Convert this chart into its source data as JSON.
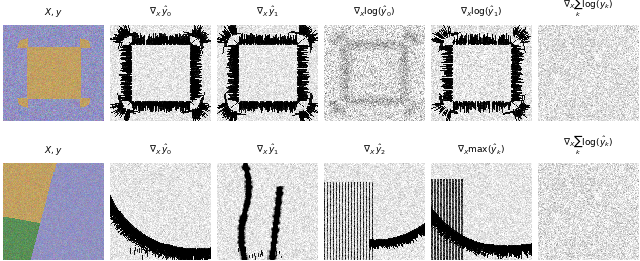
{
  "figsize": [
    6.4,
    2.61
  ],
  "dpi": 100,
  "nrows": 2,
  "ncols": 6,
  "row1_titles": [
    "$X, y$",
    "$\\nabla_X\\, \\hat{y}_0$",
    "$\\nabla_X\\, \\hat{y}_1$",
    "$\\nabla_X \\log(\\hat{y}_0)$",
    "$\\nabla_X \\log(\\hat{y}_1)$",
    "$\\nabla_X \\sum_k \\log(\\hat{y}_k)$"
  ],
  "row2_titles": [
    "$X, y$",
    "$\\nabla_X\\, \\hat{y}_0$",
    "$\\nabla_X\\, \\hat{y}_1$",
    "$\\nabla_X\\, \\hat{y}_2$",
    "$\\nabla_X \\max(\\hat{y}_k)$",
    "$\\nabla_X \\sum_k \\log(\\hat{y}_k)$"
  ],
  "title_fontsize": 6.5
}
